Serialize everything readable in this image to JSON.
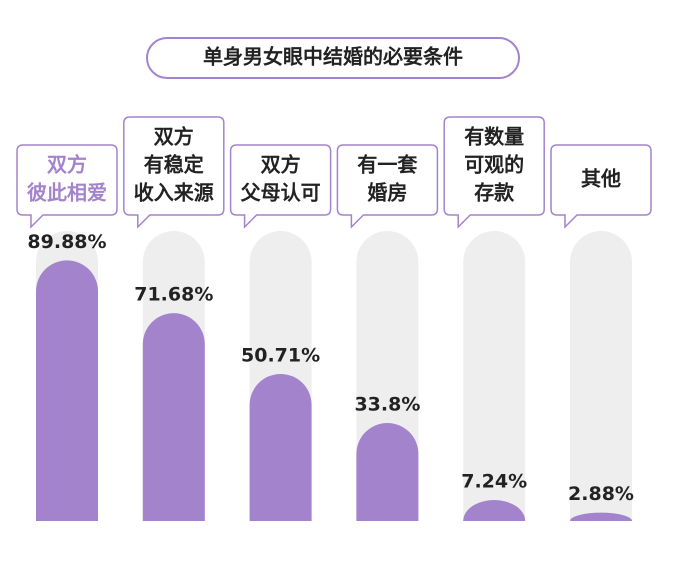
{
  "chart_data": {
    "type": "bar",
    "title": "单身男女眼中结婚的必要条件",
    "categories": [
      [
        "双方",
        "彼此相爱"
      ],
      [
        "双方",
        "有稳定",
        "收入来源"
      ],
      [
        "双方",
        "父母认可"
      ],
      [
        "有一套",
        "婚房"
      ],
      [
        "有数量",
        "可观的",
        "存款"
      ],
      [
        "其他"
      ]
    ],
    "category_colors": [
      "#a384cc",
      "#222222",
      "#222222",
      "#222222",
      "#222222",
      "#222222"
    ],
    "values": [
      89.88,
      71.68,
      50.71,
      33.8,
      7.24,
      2.88
    ],
    "value_labels": [
      "89.88%",
      "71.68%",
      "50.71%",
      "33.8%",
      "7.24%",
      "2.88%"
    ],
    "color": "#a384cc",
    "track_color": "#eeeeef",
    "ylim": [
      0,
      100
    ]
  }
}
